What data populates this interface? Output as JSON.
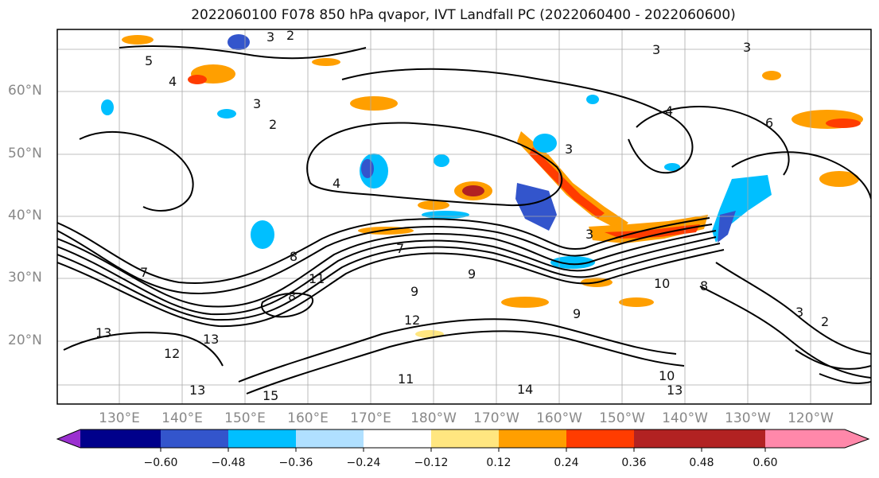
{
  "title": "2022060100 F078 850 hPa qvapor, IVT Landfall PC (2022060400 - 2022060600)",
  "lat_labels": [
    "60°N",
    "50°N",
    "40°N",
    "30°N",
    "20°N"
  ],
  "lon_labels": [
    "130°E",
    "140°E",
    "150°E",
    "160°E",
    "170°E",
    "180°W",
    "170°W",
    "160°W",
    "150°W",
    "140°W",
    "130°W",
    "120°W"
  ],
  "colorbar": {
    "colors": [
      "#9b30d0",
      "#00008b",
      "#3355cc",
      "#00bfff",
      "#b0e0ff",
      "#ffffff",
      "#ffe680",
      "#ff9f00",
      "#ff3c00",
      "#b22222",
      "#ff88aa"
    ],
    "tick_labels": [
      "−0.60",
      "−0.48",
      "−0.36",
      "−0.24",
      "−0.12",
      "0.12",
      "0.24",
      "0.36",
      "0.48",
      "0.60"
    ]
  },
  "contour_labels": [
    "3",
    "2",
    "5",
    "3",
    "4",
    "3",
    "6",
    "4",
    "2",
    "3",
    "4",
    "3",
    "3",
    "8",
    "7",
    "9",
    "11",
    "10",
    "8",
    "9",
    "13",
    "13",
    "12",
    "13",
    "15",
    "11",
    "14",
    "12",
    "10",
    "13",
    "8",
    "9",
    "7",
    "3",
    "2"
  ],
  "map": {
    "extent_lat": [
      10,
      70
    ],
    "extent_lon_east": [
      120,
      250
    ],
    "field": "850 hPa qvapor, IVT Landfall PC",
    "grid": true
  }
}
